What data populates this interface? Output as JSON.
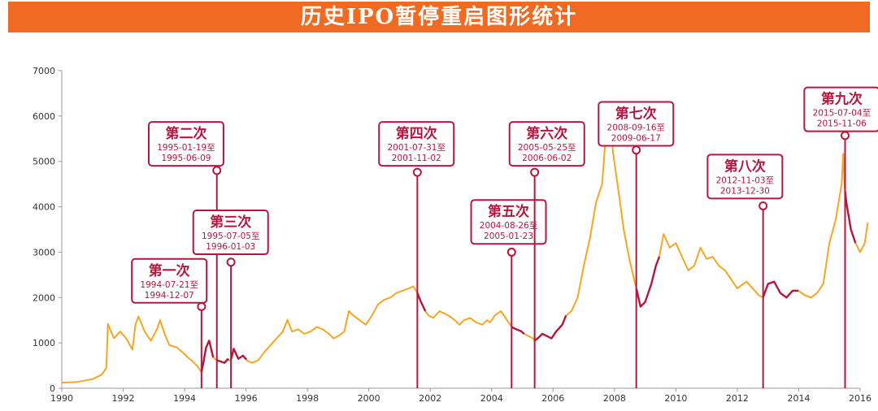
{
  "title": "历史IPO暂停重启图形统计",
  "colors": {
    "title_bg": "#f06a23",
    "line_normal": "#f5a623",
    "line_suspended": "#b2183f",
    "label_border": "#b2183f",
    "label_text": "#b2183f"
  },
  "chart_data": {
    "type": "line",
    "title": "历史IPO暂停重启图形统计",
    "xlabel": "",
    "ylabel": "",
    "xlim": [
      1990,
      2016
    ],
    "ylim": [
      0,
      7000
    ],
    "x_ticks": [
      "1990",
      "1992",
      "1994",
      "1996",
      "1998",
      "2000",
      "2002",
      "2004",
      "2006",
      "2008",
      "2010",
      "2012",
      "2014",
      "2016"
    ],
    "y_ticks": [
      "0",
      "1000",
      "2000",
      "3000",
      "4000",
      "5000",
      "6000",
      "7000"
    ],
    "grid": false,
    "series": [
      {
        "points": [
          [
            1990.0,
            120
          ],
          [
            1990.5,
            140
          ],
          [
            1991.0,
            200
          ],
          [
            1991.3,
            300
          ],
          [
            1991.45,
            450
          ],
          [
            1991.5,
            1420
          ],
          [
            1991.7,
            1100
          ],
          [
            1991.9,
            1250
          ],
          [
            1992.1,
            1100
          ],
          [
            1992.3,
            850
          ],
          [
            1992.4,
            1400
          ],
          [
            1992.5,
            1580
          ],
          [
            1992.7,
            1250
          ],
          [
            1992.9,
            1050
          ],
          [
            1993.1,
            1300
          ],
          [
            1993.2,
            1500
          ],
          [
            1993.35,
            1200
          ],
          [
            1993.5,
            950
          ],
          [
            1993.75,
            900
          ],
          [
            1994.0,
            750
          ],
          [
            1994.1,
            680
          ],
          [
            1994.25,
            600
          ],
          [
            1994.4,
            500
          ],
          [
            1994.55,
            360
          ],
          [
            1994.6,
            520
          ],
          [
            1994.7,
            900
          ],
          [
            1994.8,
            1050
          ],
          [
            1994.93,
            680
          ],
          [
            1995.05,
            620
          ],
          [
            1995.3,
            560
          ],
          [
            1995.4,
            640
          ],
          [
            1995.5,
            600
          ],
          [
            1995.6,
            870
          ],
          [
            1995.75,
            650
          ],
          [
            1995.9,
            720
          ],
          [
            1996.05,
            600
          ],
          [
            1996.2,
            560
          ],
          [
            1996.4,
            620
          ],
          [
            1996.6,
            800
          ],
          [
            1996.8,
            950
          ],
          [
            1997.0,
            1100
          ],
          [
            1997.2,
            1250
          ],
          [
            1997.35,
            1510
          ],
          [
            1997.5,
            1250
          ],
          [
            1997.7,
            1300
          ],
          [
            1997.9,
            1200
          ],
          [
            1998.1,
            1250
          ],
          [
            1998.3,
            1350
          ],
          [
            1998.5,
            1300
          ],
          [
            1998.7,
            1200
          ],
          [
            1998.85,
            1100
          ],
          [
            1999.0,
            1150
          ],
          [
            1999.2,
            1250
          ],
          [
            1999.35,
            1700
          ],
          [
            1999.5,
            1600
          ],
          [
            1999.7,
            1500
          ],
          [
            1999.9,
            1400
          ],
          [
            2000.1,
            1600
          ],
          [
            2000.3,
            1850
          ],
          [
            2000.5,
            1950
          ],
          [
            2000.7,
            2000
          ],
          [
            2000.9,
            2100
          ],
          [
            2001.1,
            2150
          ],
          [
            2001.3,
            2200
          ],
          [
            2001.45,
            2245
          ],
          [
            2001.58,
            2100
          ],
          [
            2001.7,
            1900
          ],
          [
            2001.84,
            1700
          ],
          [
            2001.95,
            1600
          ],
          [
            2002.1,
            1550
          ],
          [
            2002.3,
            1700
          ],
          [
            2002.45,
            1650
          ],
          [
            2002.6,
            1600
          ],
          [
            2002.8,
            1500
          ],
          [
            2002.95,
            1400
          ],
          [
            2003.1,
            1500
          ],
          [
            2003.3,
            1550
          ],
          [
            2003.5,
            1450
          ],
          [
            2003.7,
            1400
          ],
          [
            2003.85,
            1500
          ],
          [
            2003.95,
            1450
          ],
          [
            2004.1,
            1600
          ],
          [
            2004.3,
            1700
          ],
          [
            2004.5,
            1500
          ],
          [
            2004.65,
            1350
          ],
          [
            2004.8,
            1300
          ],
          [
            2004.95,
            1260
          ],
          [
            2005.06,
            1200
          ],
          [
            2005.2,
            1150
          ],
          [
            2005.35,
            1100
          ],
          [
            2005.4,
            1050
          ],
          [
            2005.5,
            1100
          ],
          [
            2005.65,
            1200
          ],
          [
            2005.8,
            1150
          ],
          [
            2005.95,
            1100
          ],
          [
            2006.1,
            1250
          ],
          [
            2006.3,
            1400
          ],
          [
            2006.42,
            1600
          ],
          [
            2006.6,
            1700
          ],
          [
            2006.8,
            2000
          ],
          [
            2007.0,
            2700
          ],
          [
            2007.2,
            3300
          ],
          [
            2007.4,
            4100
          ],
          [
            2007.6,
            4500
          ],
          [
            2007.75,
            5900
          ],
          [
            2007.85,
            6100
          ],
          [
            2007.95,
            5200
          ],
          [
            2008.1,
            4500
          ],
          [
            2008.3,
            3500
          ],
          [
            2008.5,
            2800
          ],
          [
            2008.71,
            2200
          ],
          [
            2008.85,
            1800
          ],
          [
            2009.0,
            1900
          ],
          [
            2009.2,
            2300
          ],
          [
            2009.35,
            2700
          ],
          [
            2009.46,
            2900
          ],
          [
            2009.6,
            3400
          ],
          [
            2009.8,
            3100
          ],
          [
            2010.0,
            3200
          ],
          [
            2010.2,
            2900
          ],
          [
            2010.4,
            2600
          ],
          [
            2010.6,
            2700
          ],
          [
            2010.8,
            3100
          ],
          [
            2011.0,
            2850
          ],
          [
            2011.2,
            2900
          ],
          [
            2011.4,
            2700
          ],
          [
            2011.6,
            2600
          ],
          [
            2011.8,
            2400
          ],
          [
            2012.0,
            2200
          ],
          [
            2012.3,
            2350
          ],
          [
            2012.5,
            2200
          ],
          [
            2012.7,
            2050
          ],
          [
            2012.84,
            2000
          ],
          [
            2013.0,
            2300
          ],
          [
            2013.2,
            2350
          ],
          [
            2013.4,
            2100
          ],
          [
            2013.6,
            2000
          ],
          [
            2013.8,
            2150
          ],
          [
            2013.99,
            2150
          ],
          [
            2014.2,
            2050
          ],
          [
            2014.4,
            2000
          ],
          [
            2014.6,
            2100
          ],
          [
            2014.8,
            2300
          ],
          [
            2015.0,
            3200
          ],
          [
            2015.2,
            3700
          ],
          [
            2015.4,
            4500
          ],
          [
            2015.45,
            5170
          ],
          [
            2015.5,
            4400
          ],
          [
            2015.55,
            4100
          ],
          [
            2015.7,
            3500
          ],
          [
            2015.85,
            3200
          ],
          [
            2016.0,
            3000
          ],
          [
            2016.15,
            3200
          ],
          [
            2016.25,
            3650
          ]
        ]
      }
    ],
    "suspensions": [
      {
        "name": "第一次",
        "start": "1994-07-21",
        "end": "1994-12-07",
        "s": 1994.55,
        "e": 1994.93,
        "label_x": 1993.5,
        "dot_y": 1800,
        "box_y": 2850
      },
      {
        "name": "第二次",
        "start": "1995-01-19",
        "end": "1995-06-09",
        "s": 1995.05,
        "e": 1995.44,
        "label_x": 1994.05,
        "dot_y": 4800,
        "box_y": 5870
      },
      {
        "name": "第三次",
        "start": "1995-07-05",
        "end": "1996-01-03",
        "s": 1995.51,
        "e": 1996.01,
        "label_x": 1995.5,
        "dot_y": 2780,
        "box_y": 3920
      },
      {
        "name": "第四次",
        "start": "2001-07-31",
        "end": "2001-11-02",
        "s": 2001.58,
        "e": 2001.84,
        "label_x": 2001.55,
        "dot_y": 4760,
        "box_y": 5870
      },
      {
        "name": "第五次",
        "start": "2004-08-26",
        "end": "2005-01-23",
        "s": 2004.65,
        "e": 2005.06,
        "label_x": 2004.55,
        "dot_y": 3000,
        "box_y": 4150
      },
      {
        "name": "第六次",
        "start": "2005-05-25",
        "end": "2006-06-02",
        "s": 2005.4,
        "e": 2006.42,
        "label_x": 2005.8,
        "dot_y": 4760,
        "box_y": 5870
      },
      {
        "name": "第七次",
        "start": "2008-09-16",
        "end": "2009-06-17",
        "s": 2008.71,
        "e": 2009.46,
        "label_x": 2008.7,
        "dot_y": 5250,
        "box_y": 6310
      },
      {
        "name": "第八次",
        "start": "2012-11-03",
        "end": "2013-12-30",
        "s": 2012.84,
        "e": 2013.99,
        "label_x": 2012.25,
        "dot_y": 4020,
        "box_y": 5150
      },
      {
        "name": "第九次",
        "start": "2015-07-04",
        "end": "2015-11-06",
        "s": 2015.51,
        "e": 2015.85,
        "label_x": 2015.4,
        "dot_y": 5570,
        "box_y": 6630
      }
    ]
  }
}
